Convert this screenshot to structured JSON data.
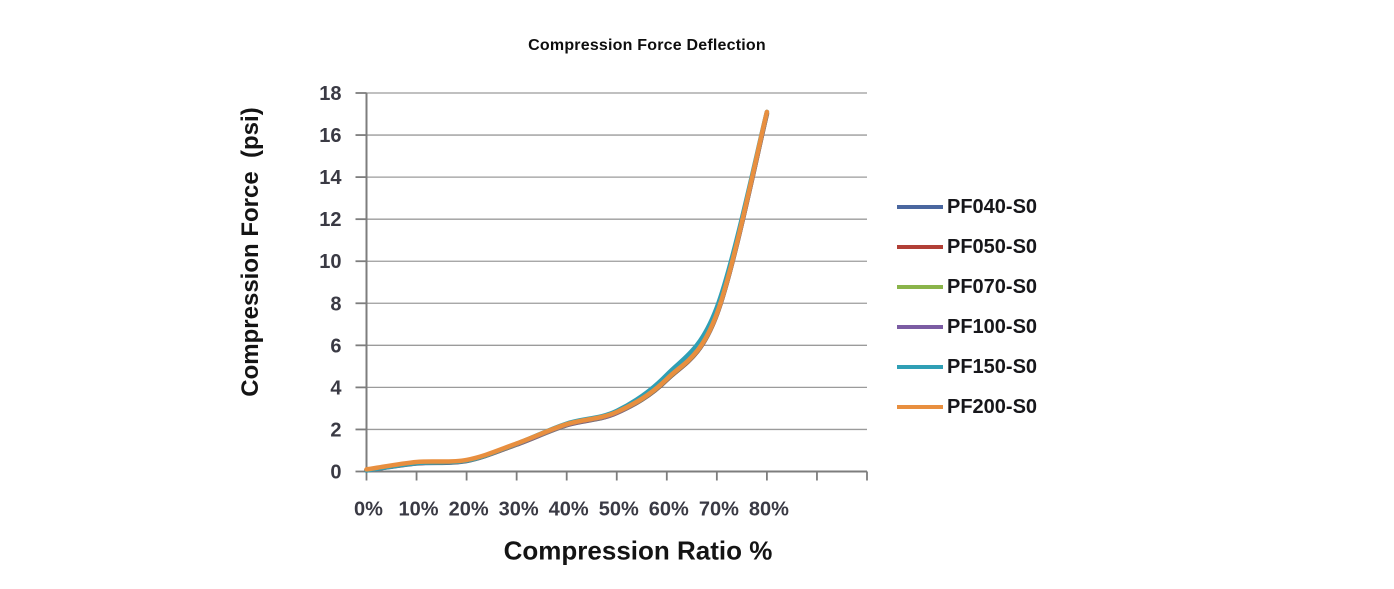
{
  "chart_data": {
    "type": "line",
    "title": "Compression Force Deflection",
    "xlabel": "Compression Ratio %",
    "ylabel": "Compression Force  (psi)",
    "categories": [
      "0%",
      "10%",
      "20%",
      "30%",
      "40%",
      "50%",
      "60%",
      "70%",
      "80%"
    ],
    "x_unlabeled_extra_ticks": 2,
    "ylim": [
      0,
      18
    ],
    "y_tick_step": 2,
    "y_tick_labels": [
      "0",
      "2",
      "4",
      "6",
      "8",
      "10",
      "12",
      "14",
      "16",
      "18"
    ],
    "grid": "horizontal-only",
    "legend_position": "right",
    "series": [
      {
        "name": "PF040-S0",
        "color": "#4a679f",
        "values": [
          0.05,
          0.38,
          0.5,
          1.28,
          2.2,
          2.78,
          4.35,
          7.45,
          17.0
        ]
      },
      {
        "name": "PF050-S0",
        "color": "#b13f36",
        "values": [
          0.06,
          0.39,
          0.51,
          1.29,
          2.21,
          2.79,
          4.36,
          7.46,
          17.0
        ]
      },
      {
        "name": "PF070-S0",
        "color": "#8ab44a",
        "values": [
          0.07,
          0.4,
          0.52,
          1.3,
          2.22,
          2.8,
          4.38,
          7.48,
          17.02
        ]
      },
      {
        "name": "PF100-S0",
        "color": "#7b5ca3",
        "values": [
          0.08,
          0.41,
          0.53,
          1.31,
          2.23,
          2.81,
          4.4,
          7.5,
          17.05
        ]
      },
      {
        "name": "PF150-S0",
        "color": "#2f9fb5",
        "values": [
          0.05,
          0.4,
          0.52,
          1.32,
          2.28,
          2.88,
          4.6,
          7.8,
          17.1
        ]
      },
      {
        "name": "PF200-S0",
        "color": "#e88f3f",
        "values": [
          0.1,
          0.45,
          0.55,
          1.33,
          2.25,
          2.83,
          4.4,
          7.5,
          17.1
        ]
      }
    ]
  },
  "colors": {
    "background": "#ffffff",
    "gridline": "#9b9b9b",
    "axis": "#7d7d7d",
    "tick_label": "#3a3a44",
    "title_text": "#0e0e0e"
  }
}
